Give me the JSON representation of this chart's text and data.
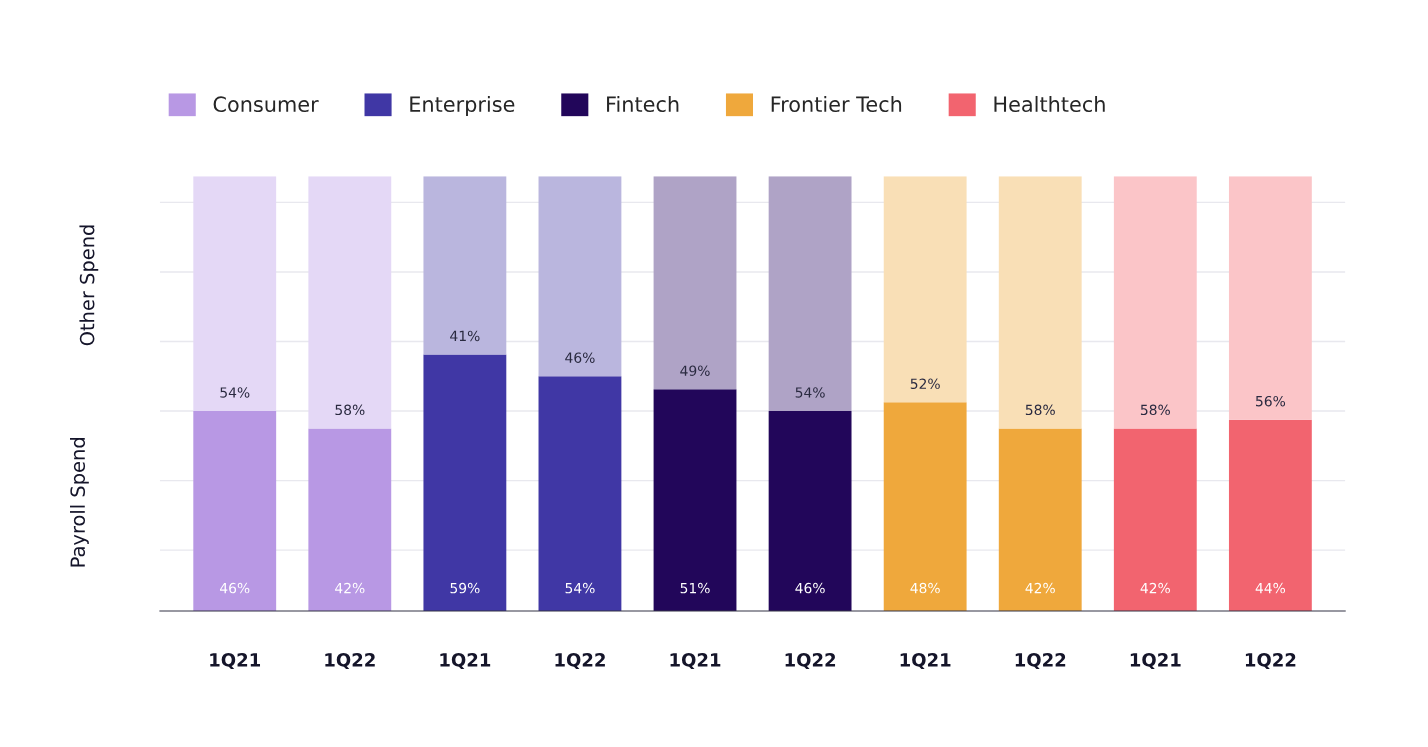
{
  "chart_data": {
    "type": "bar",
    "stacked": true,
    "categories": [
      "1Q21",
      "1Q22",
      "1Q21",
      "1Q22",
      "1Q21",
      "1Q22",
      "1Q21",
      "1Q22",
      "1Q21",
      "1Q22"
    ],
    "ylabel": "Payroll Spend",
    "annotations": [
      "Other Spend"
    ],
    "ylim": [
      0,
      100
    ],
    "yticks": [
      14,
      30,
      46,
      62,
      78,
      94
    ],
    "tick_labels": "x",
    "grid": "y",
    "legend": "top",
    "series": [
      {
        "name": "Consumer",
        "color": "#b898e4",
        "values": [
          46,
          42,
          null,
          null,
          null,
          null,
          null,
          null,
          null,
          null
        ],
        "value_labels": [
          "46%",
          "42%",
          null,
          null,
          null,
          null,
          null,
          null,
          null,
          null
        ]
      },
      {
        "color": "#e4d8f6",
        "values": [
          54,
          58,
          null,
          null,
          null,
          null,
          null,
          null,
          null,
          null
        ],
        "value_labels": [
          "54%",
          "58%",
          null,
          null,
          null,
          null,
          null,
          null,
          null,
          null
        ]
      },
      {
        "name": "Enterprise",
        "color": "#4037a5",
        "values": [
          null,
          null,
          59,
          54,
          null,
          null,
          null,
          null,
          null,
          null
        ],
        "value_labels": [
          null,
          null,
          "59%",
          "54%",
          null,
          null,
          null,
          null,
          null,
          null
        ]
      },
      {
        "color": "#bab6de",
        "values": [
          null,
          null,
          41,
          46,
          null,
          null,
          null,
          null,
          null,
          null
        ],
        "value_labels": [
          null,
          null,
          "41%",
          "46%",
          null,
          null,
          null,
          null,
          null,
          null
        ]
      },
      {
        "name": "Fintech",
        "color": "#22065a",
        "values": [
          null,
          null,
          null,
          null,
          51,
          46,
          null,
          null,
          null,
          null
        ],
        "value_labels": [
          null,
          null,
          null,
          null,
          "51%",
          "46%",
          null,
          null,
          null,
          null
        ]
      },
      {
        "color": "#afa3c6",
        "values": [
          null,
          null,
          null,
          null,
          49,
          54,
          null,
          null,
          null,
          null
        ],
        "value_labels": [
          null,
          null,
          null,
          null,
          "49%",
          "54%",
          null,
          null,
          null,
          null
        ]
      },
      {
        "name": "Frontier Tech",
        "color": "#efa83c",
        "values": [
          null,
          null,
          null,
          null,
          null,
          null,
          48,
          42,
          null,
          null
        ],
        "value_labels": [
          null,
          null,
          null,
          null,
          null,
          null,
          "48%",
          "42%",
          null,
          null
        ]
      },
      {
        "color": "#f9dfb6",
        "values": [
          null,
          null,
          null,
          null,
          null,
          null,
          52,
          58,
          null,
          null
        ],
        "value_labels": [
          null,
          null,
          null,
          null,
          null,
          null,
          "52%",
          "58%",
          null,
          null
        ]
      },
      {
        "name": "Healthtech",
        "color": "#f2646f",
        "values": [
          null,
          null,
          null,
          null,
          null,
          null,
          null,
          null,
          42,
          44
        ],
        "value_labels": [
          null,
          null,
          null,
          null,
          null,
          null,
          null,
          null,
          "42%",
          "44%"
        ]
      },
      {
        "color": "#fbc5c8",
        "values": [
          null,
          null,
          null,
          null,
          null,
          null,
          null,
          null,
          58,
          56
        ],
        "value_labels": [
          null,
          null,
          null,
          null,
          null,
          null,
          null,
          null,
          "58%",
          "56%"
        ]
      }
    ]
  }
}
